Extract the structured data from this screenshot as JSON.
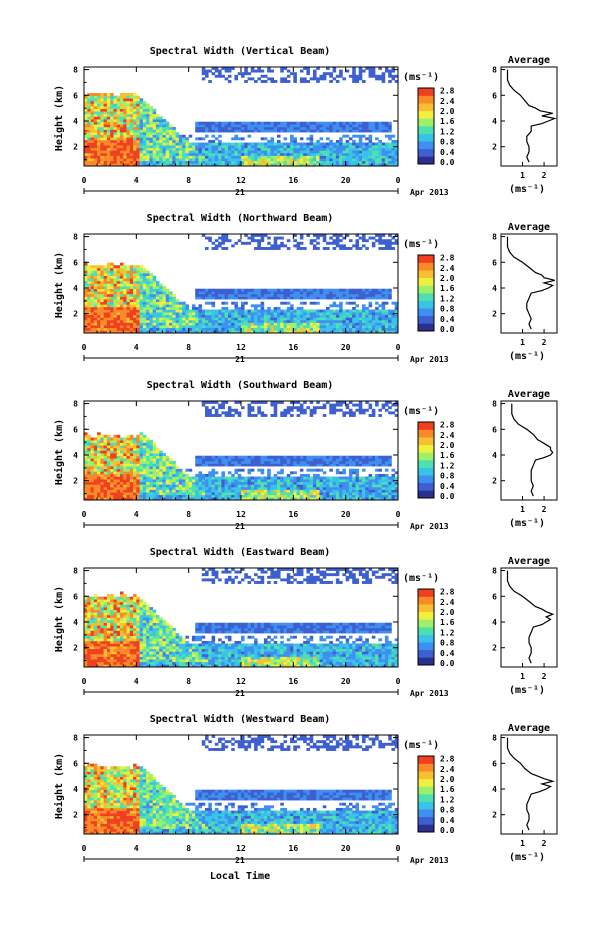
{
  "figure": {
    "x_axis_label": "Local Time",
    "day_label": "21",
    "month_label": "Apr 2013",
    "colorbar_unit": "(ms⁻¹)",
    "colorbar_ticks": [
      "2.8",
      "2.4",
      "2.0",
      "1.6",
      "1.2",
      "0.8",
      "0.4",
      "0.0"
    ],
    "colormap": [
      "#2b2f8f",
      "#3d5fd0",
      "#3e8ff0",
      "#38c4e8",
      "#4fe0b0",
      "#9ef06a",
      "#f0f040",
      "#f8c030",
      "#f88a28",
      "#f04020"
    ]
  },
  "chart_data": [
    {
      "type": "heatmap",
      "title": "Spectral Width (Vertical Beam)",
      "xlabel": "",
      "ylabel": "Height (km)",
      "x_ticks": [
        "0",
        "4",
        "8",
        "12",
        "16",
        "20",
        "0"
      ],
      "xlim": [
        0,
        24
      ],
      "ylim": [
        0.5,
        8.2
      ],
      "y_ticks": [
        "2",
        "4",
        "6",
        "8"
      ],
      "colorbar": {
        "label": "(ms⁻¹)",
        "range": [
          0.0,
          2.8
        ]
      },
      "average_profile": {
        "title": "Average",
        "xlabel": "(ms⁻¹)",
        "x_ticks": [
          "1",
          "2"
        ],
        "xlim": [
          0,
          2.6
        ],
        "y_ticks": [
          "2",
          "4",
          "6",
          "8"
        ],
        "ylim": [
          0.5,
          8.2
        ],
        "heights": [
          0.8,
          1.2,
          1.6,
          2.0,
          2.4,
          2.8,
          3.2,
          3.6,
          3.8,
          4.0,
          4.2,
          4.4,
          4.6,
          4.8,
          5.0,
          5.2,
          5.6,
          6.0,
          6.4,
          6.8,
          7.2,
          7.6,
          8.0
        ],
        "values": [
          1.3,
          1.2,
          1.3,
          1.3,
          1.2,
          1.2,
          1.4,
          1.4,
          1.9,
          2.2,
          2.5,
          1.9,
          2.4,
          1.8,
          1.6,
          1.3,
          1.1,
          0.9,
          0.6,
          0.4,
          0.3,
          0.3,
          0.3
        ]
      }
    },
    {
      "type": "heatmap",
      "title": "Spectral Width (Northward Beam)",
      "xlabel": "",
      "ylabel": "Height (km)",
      "x_ticks": [
        "0",
        "4",
        "8",
        "12",
        "16",
        "20",
        "0"
      ],
      "xlim": [
        0,
        24
      ],
      "ylim": [
        0.5,
        8.2
      ],
      "y_ticks": [
        "2",
        "4",
        "6",
        "8"
      ],
      "colorbar": {
        "label": "(ms⁻¹)",
        "range": [
          0.0,
          2.8
        ]
      },
      "average_profile": {
        "title": "Average",
        "xlabel": "(ms⁻¹)",
        "x_ticks": [
          "1",
          "2"
        ],
        "xlim": [
          0,
          2.6
        ],
        "y_ticks": [
          "2",
          "4",
          "6",
          "8"
        ],
        "ylim": [
          0.5,
          8.2
        ],
        "heights": [
          0.8,
          1.2,
          1.6,
          2.0,
          2.4,
          2.8,
          3.2,
          3.6,
          3.8,
          4.0,
          4.2,
          4.4,
          4.6,
          4.8,
          5.0,
          5.2,
          5.6,
          6.0,
          6.4,
          6.8,
          7.2,
          7.6,
          8.0
        ],
        "values": [
          1.4,
          1.3,
          1.4,
          1.3,
          1.2,
          1.2,
          1.3,
          1.4,
          1.9,
          2.2,
          2.4,
          2.0,
          2.5,
          2.0,
          1.9,
          1.6,
          1.3,
          1.0,
          0.6,
          0.4,
          0.3,
          0.3,
          0.3
        ]
      }
    },
    {
      "type": "heatmap",
      "title": "Spectral Width (Southward Beam)",
      "xlabel": "",
      "ylabel": "Height (km)",
      "x_ticks": [
        "0",
        "4",
        "8",
        "12",
        "16",
        "20",
        "0"
      ],
      "xlim": [
        0,
        24
      ],
      "ylim": [
        0.5,
        8.2
      ],
      "y_ticks": [
        "2",
        "4",
        "6",
        "8"
      ],
      "colorbar": {
        "label": "(ms⁻¹)",
        "range": [
          0.0,
          2.8
        ]
      },
      "average_profile": {
        "title": "Average",
        "xlabel": "(ms⁻¹)",
        "x_ticks": [
          "1",
          "2"
        ],
        "xlim": [
          0,
          2.6
        ],
        "y_ticks": [
          "2",
          "4",
          "6",
          "8"
        ],
        "ylim": [
          0.5,
          8.2
        ],
        "heights": [
          0.8,
          1.2,
          1.6,
          2.0,
          2.4,
          2.8,
          3.2,
          3.6,
          3.8,
          4.0,
          4.2,
          4.4,
          4.6,
          4.8,
          5.0,
          5.2,
          5.6,
          6.0,
          6.4,
          6.8,
          7.2,
          7.6,
          8.0
        ],
        "values": [
          1.5,
          1.4,
          1.5,
          1.4,
          1.4,
          1.4,
          1.5,
          1.6,
          2.0,
          2.3,
          2.4,
          2.3,
          2.3,
          2.1,
          1.9,
          1.7,
          1.5,
          1.2,
          0.8,
          0.6,
          0.5,
          0.5,
          0.5
        ]
      }
    },
    {
      "type": "heatmap",
      "title": "Spectral Width (Eastward Beam)",
      "xlabel": "",
      "ylabel": "Height (km)",
      "x_ticks": [
        "0",
        "4",
        "8",
        "12",
        "16",
        "20",
        "0"
      ],
      "xlim": [
        0,
        24
      ],
      "ylim": [
        0.5,
        8.2
      ],
      "y_ticks": [
        "2",
        "4",
        "6",
        "8"
      ],
      "colorbar": {
        "label": "(ms⁻¹)",
        "range": [
          0.0,
          2.8
        ]
      },
      "average_profile": {
        "title": "Average",
        "xlabel": "(ms⁻¹)",
        "x_ticks": [
          "1",
          "2"
        ],
        "xlim": [
          0,
          2.6
        ],
        "y_ticks": [
          "2",
          "4",
          "6",
          "8"
        ],
        "ylim": [
          0.5,
          8.2
        ],
        "heights": [
          0.8,
          1.2,
          1.6,
          2.0,
          2.4,
          2.8,
          3.2,
          3.6,
          3.8,
          4.0,
          4.2,
          4.4,
          4.6,
          4.8,
          5.0,
          5.2,
          5.6,
          6.0,
          6.4,
          6.8,
          7.2,
          7.6,
          8.0
        ],
        "values": [
          1.4,
          1.3,
          1.4,
          1.4,
          1.3,
          1.3,
          1.4,
          1.5,
          1.9,
          2.1,
          2.3,
          2.1,
          2.4,
          2.1,
          1.9,
          1.6,
          1.3,
          1.0,
          0.6,
          0.4,
          0.3,
          0.3,
          0.3
        ]
      }
    },
    {
      "type": "heatmap",
      "title": "Spectral Width (Westward Beam)",
      "xlabel": "Local Time",
      "ylabel": "Height (km)",
      "x_ticks": [
        "0",
        "4",
        "8",
        "12",
        "16",
        "20",
        "0"
      ],
      "xlim": [
        0,
        24
      ],
      "ylim": [
        0.5,
        8.2
      ],
      "y_ticks": [
        "2",
        "4",
        "6",
        "8"
      ],
      "colorbar": {
        "label": "(ms⁻¹)",
        "range": [
          0.0,
          2.8
        ]
      },
      "average_profile": {
        "title": "Average",
        "xlabel": "(ms⁻¹)",
        "x_ticks": [
          "1",
          "2"
        ],
        "xlim": [
          0,
          2.6
        ],
        "y_ticks": [
          "2",
          "4",
          "6",
          "8"
        ],
        "ylim": [
          0.5,
          8.2
        ],
        "heights": [
          0.8,
          1.2,
          1.6,
          2.0,
          2.4,
          2.8,
          3.2,
          3.6,
          3.8,
          4.0,
          4.2,
          4.4,
          4.6,
          4.8,
          5.0,
          5.2,
          5.6,
          6.0,
          6.4,
          6.8,
          7.2,
          7.6,
          8.0
        ],
        "values": [
          1.3,
          1.2,
          1.3,
          1.3,
          1.2,
          1.2,
          1.3,
          1.4,
          1.8,
          2.1,
          2.3,
          1.9,
          2.4,
          2.0,
          1.7,
          1.4,
          1.1,
          0.9,
          0.6,
          0.4,
          0.3,
          0.3,
          0.3
        ]
      }
    }
  ]
}
